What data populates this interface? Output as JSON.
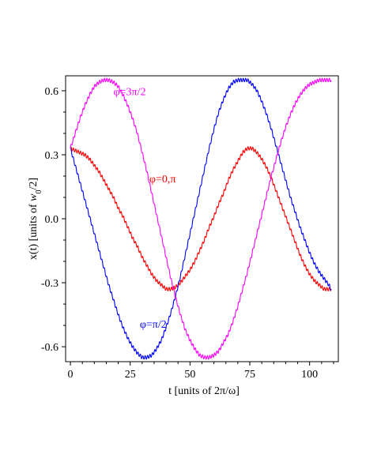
{
  "chart_data": {
    "type": "line",
    "title": "",
    "xlabel": "t [units of 2π/ω]",
    "ylabel_main": "x(t) [units of ",
    "ylabel_w": "w",
    "ylabel_sub": "0",
    "ylabel_end": "/2]",
    "xlim": [
      -2,
      112
    ],
    "ylim": [
      -0.67,
      0.67
    ],
    "x_ticks": [
      0,
      25,
      50,
      75,
      100
    ],
    "x_tick_labels": [
      "0",
      "25",
      "50",
      "75",
      "100"
    ],
    "y_ticks": [
      0.6,
      0.3,
      0.0,
      -0.3,
      -0.6
    ],
    "y_tick_labels": [
      "0.6",
      "0.3",
      "0.0",
      "-0.3",
      "-0.6"
    ],
    "grid": false,
    "legend": "none",
    "series": [
      {
        "annotation": "φ=0,π",
        "color": "#ff0000",
        "x": [
          0,
          2,
          4,
          6,
          8,
          10,
          12,
          14,
          16,
          18,
          20,
          22,
          24,
          26,
          28,
          30,
          32,
          34,
          36,
          38,
          40,
          42,
          44,
          46,
          48,
          50,
          52,
          54,
          56,
          58,
          60,
          62,
          64,
          66,
          68,
          70,
          72,
          74,
          76,
          78,
          80,
          82,
          84,
          86,
          88,
          90,
          92,
          94,
          96,
          98,
          100,
          102,
          104,
          106,
          108,
          109
        ],
        "y": [
          0.33,
          0.32,
          0.31,
          0.3,
          0.28,
          0.25,
          0.22,
          0.18,
          0.14,
          0.1,
          0.05,
          0.01,
          -0.04,
          -0.09,
          -0.13,
          -0.18,
          -0.22,
          -0.26,
          -0.29,
          -0.31,
          -0.33,
          -0.33,
          -0.32,
          -0.3,
          -0.27,
          -0.24,
          -0.2,
          -0.15,
          -0.1,
          -0.04,
          0.01,
          0.07,
          0.12,
          0.18,
          0.23,
          0.27,
          0.31,
          0.33,
          0.33,
          0.31,
          0.28,
          0.24,
          0.19,
          0.13,
          0.07,
          0.01,
          -0.05,
          -0.11,
          -0.17,
          -0.22,
          -0.26,
          -0.29,
          -0.31,
          -0.33,
          -0.33,
          -0.33
        ]
      },
      {
        "annotation": "φ=π/2",
        "color": "#0000ff",
        "x": [
          0,
          2,
          4,
          6,
          8,
          10,
          12,
          14,
          16,
          18,
          20,
          22,
          24,
          26,
          28,
          30,
          32,
          34,
          36,
          38,
          40,
          42,
          44,
          46,
          48,
          50,
          52,
          54,
          56,
          58,
          60,
          62,
          64,
          66,
          68,
          70,
          72,
          74,
          76,
          78,
          80,
          82,
          84,
          86,
          88,
          90,
          92,
          94,
          96,
          98,
          100,
          102,
          104,
          106,
          108,
          109
        ],
        "y": [
          0.33,
          0.25,
          0.17,
          0.09,
          0.01,
          -0.07,
          -0.15,
          -0.23,
          -0.31,
          -0.38,
          -0.45,
          -0.51,
          -0.56,
          -0.6,
          -0.63,
          -0.65,
          -0.65,
          -0.64,
          -0.61,
          -0.57,
          -0.51,
          -0.44,
          -0.36,
          -0.27,
          -0.17,
          -0.07,
          0.03,
          0.13,
          0.23,
          0.33,
          0.42,
          0.5,
          0.56,
          0.61,
          0.64,
          0.65,
          0.65,
          0.65,
          0.63,
          0.6,
          0.55,
          0.49,
          0.42,
          0.34,
          0.26,
          0.18,
          0.1,
          0.03,
          -0.04,
          -0.1,
          -0.16,
          -0.21,
          -0.25,
          -0.28,
          -0.31,
          -0.33
        ]
      },
      {
        "annotation": "φ=3π/2",
        "color": "#ff00ff",
        "x": [
          0,
          2,
          4,
          6,
          8,
          10,
          12,
          14,
          16,
          18,
          20,
          22,
          24,
          26,
          28,
          30,
          32,
          34,
          36,
          38,
          40,
          42,
          44,
          46,
          48,
          50,
          52,
          54,
          56,
          58,
          60,
          62,
          64,
          66,
          68,
          70,
          72,
          74,
          76,
          78,
          80,
          82,
          84,
          86,
          88,
          90,
          92,
          94,
          96,
          98,
          100,
          102,
          104,
          106,
          108,
          109
        ],
        "y": [
          0.33,
          0.4,
          0.47,
          0.53,
          0.58,
          0.62,
          0.64,
          0.65,
          0.65,
          0.64,
          0.62,
          0.58,
          0.53,
          0.47,
          0.4,
          0.31,
          0.22,
          0.12,
          0.02,
          -0.08,
          -0.18,
          -0.28,
          -0.37,
          -0.45,
          -0.52,
          -0.57,
          -0.61,
          -0.64,
          -0.65,
          -0.65,
          -0.64,
          -0.62,
          -0.58,
          -0.54,
          -0.48,
          -0.41,
          -0.33,
          -0.25,
          -0.16,
          -0.07,
          0.02,
          0.11,
          0.2,
          0.28,
          0.36,
          0.43,
          0.49,
          0.54,
          0.58,
          0.61,
          0.63,
          0.64,
          0.65,
          0.65,
          0.65,
          0.65
        ]
      }
    ],
    "wiggle_amplitude": 0.008,
    "wiggle_period": 1.0
  }
}
